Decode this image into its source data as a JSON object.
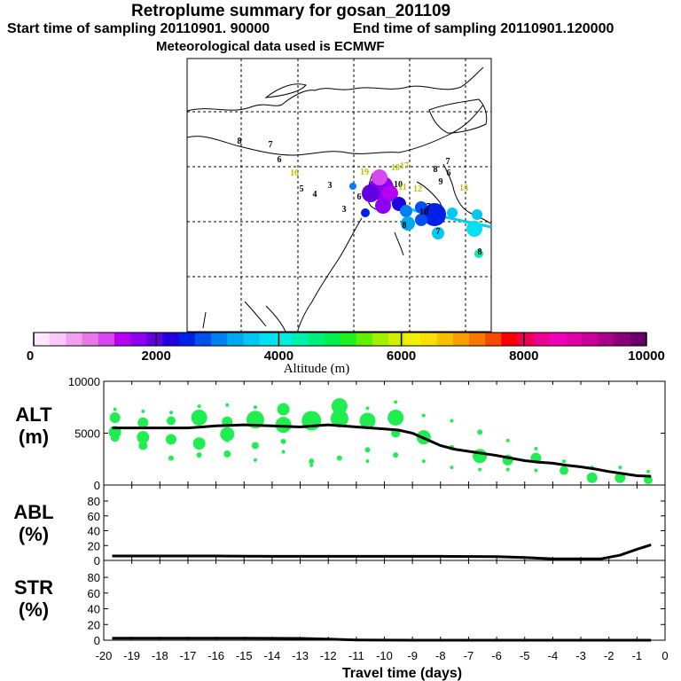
{
  "header": {
    "title": "Retroplume summary for gosan_201109",
    "start_label": "Start time of sampling 20110901. 90000",
    "end_label": "End time of sampling 20110901.120000",
    "met_label": "Meteorological data used is ECMWF"
  },
  "colorbar": {
    "tick_labels": [
      "0",
      "2000",
      "4000",
      "6000",
      "8000",
      "10000"
    ],
    "tick_values": [
      0,
      2000,
      4000,
      6000,
      8000,
      10000
    ],
    "label": "Altitude (m)",
    "colors": [
      "#ffe8ff",
      "#f8c8f8",
      "#f0a0f0",
      "#e878e8",
      "#d848f0",
      "#b800f0",
      "#9000f0",
      "#6000e0",
      "#2000e0",
      "#0020e8",
      "#0050f0",
      "#0080f0",
      "#00a8f0",
      "#00c8f0",
      "#00e0f0",
      "#00f0e0",
      "#00f0b0",
      "#00f080",
      "#00f050",
      "#20f020",
      "#60f000",
      "#a0f000",
      "#d0f000",
      "#f0f000",
      "#f8e000",
      "#f8c000",
      "#f8a000",
      "#f87800",
      "#f84800",
      "#f80000",
      "#f00050",
      "#f00090",
      "#f000b8",
      "#e000a8",
      "#c80098",
      "#a80088",
      "#880078",
      "#680068"
    ]
  },
  "map": {
    "labels": [
      {
        "t": "8",
        "c": "#000000"
      },
      {
        "t": "7",
        "c": "#000000"
      },
      {
        "t": "6",
        "c": "#000000"
      },
      {
        "t": "16",
        "c": "#c0c000"
      },
      {
        "t": "5",
        "c": "#000000"
      },
      {
        "t": "4",
        "c": "#000000"
      },
      {
        "t": "3",
        "c": "#000000"
      },
      {
        "t": "3",
        "c": "#000000"
      },
      {
        "t": "19",
        "c": "#c0c000"
      },
      {
        "t": "18",
        "c": "#c0c000"
      },
      {
        "t": "17",
        "c": "#c0c000"
      },
      {
        "t": "8",
        "c": "#000000"
      },
      {
        "t": "7",
        "c": "#000000"
      },
      {
        "t": "6",
        "c": "#000000"
      },
      {
        "t": "9",
        "c": "#000000"
      },
      {
        "t": "10",
        "c": "#000000"
      },
      {
        "t": "11",
        "c": "#c0c000"
      },
      {
        "t": "12",
        "c": "#c0c000"
      },
      {
        "t": "13",
        "c": "#c0c000"
      },
      {
        "t": "10",
        "c": "#000000"
      },
      {
        "t": "7",
        "c": "#000000"
      },
      {
        "t": "8",
        "c": "#000000"
      },
      {
        "t": "6",
        "c": "#000000"
      },
      {
        "t": "7",
        "c": "#000000"
      },
      {
        "t": "8",
        "c": "#000000"
      }
    ]
  },
  "chart_data": [
    {
      "type": "line",
      "panel": "ALT",
      "ylabel": "ALT",
      "yunit": "(m)",
      "ylim": [
        0,
        10000
      ],
      "yticks": [
        "0",
        "5000",
        "10000"
      ],
      "xlim": [
        -20,
        0
      ],
      "mean": {
        "x": [
          -19.7,
          -19.5,
          -19,
          -18.5,
          -18,
          -17.5,
          -17,
          -16.5,
          -16,
          -15.5,
          -15,
          -14.5,
          -14,
          -13.5,
          -13,
          -12.5,
          -12,
          -11.5,
          -11,
          -10.5,
          -10,
          -9.5,
          -9,
          -8.5,
          -8,
          -7.5,
          -7,
          -6.5,
          -6,
          -5.5,
          -5,
          -4.5,
          -4,
          -3.5,
          -3,
          -2.5,
          -2,
          -1.5,
          -1,
          -0.5
        ],
        "y": [
          5500,
          5500,
          5500,
          5500,
          5500,
          5500,
          5500,
          5600,
          5700,
          5750,
          5800,
          5750,
          5700,
          5650,
          5600,
          5700,
          5800,
          5700,
          5600,
          5500,
          5400,
          5300,
          5000,
          4400,
          3800,
          3450,
          3250,
          3050,
          2850,
          2600,
          2350,
          2200,
          2100,
          1900,
          1750,
          1550,
          1300,
          1100,
          900,
          850
        ]
      },
      "points": {
        "x": [
          -19.6,
          -19.6,
          -19.6,
          -19.6,
          -18.6,
          -18.6,
          -18.6,
          -18.6,
          -17.6,
          -17.6,
          -17.6,
          -17.6,
          -16.6,
          -16.6,
          -16.6,
          -16.6,
          -15.6,
          -15.6,
          -15.6,
          -15.6,
          -15.6,
          -14.6,
          -14.6,
          -14.6,
          -14.6,
          -13.6,
          -13.6,
          -13.6,
          -13.6,
          -12.6,
          -12.6,
          -12.6,
          -11.6,
          -11.6,
          -11.6,
          -10.6,
          -10.6,
          -10.6,
          -10.6,
          -9.6,
          -9.6,
          -9.6,
          -9.6,
          -8.6,
          -8.6,
          -8.6,
          -7.6,
          -7.6,
          -7.6,
          -6.6,
          -6.6,
          -6.6,
          -5.6,
          -5.6,
          -5.6,
          -4.6,
          -4.6,
          -4.6,
          -3.6,
          -3.6,
          -2.6,
          -2.6,
          -1.6,
          -1.6,
          -0.6,
          -0.6
        ],
        "y": [
          7300,
          6500,
          5100,
          4600,
          7100,
          6000,
          4600,
          3800,
          7000,
          6200,
          4400,
          2600,
          7600,
          6500,
          4000,
          2900,
          7700,
          6100,
          4900,
          4300,
          3000,
          7500,
          6300,
          3800,
          2400,
          7300,
          5800,
          4200,
          3200,
          6200,
          2300,
          1900,
          7600,
          6400,
          2600,
          7400,
          6200,
          3400,
          2300,
          8000,
          6500,
          5000,
          2900,
          6700,
          4600,
          2300,
          6200,
          3600,
          1700,
          5100,
          2800,
          1500,
          4300,
          2400,
          1500,
          3500,
          2600,
          1400,
          2300,
          1400,
          1700,
          700,
          1700,
          700,
          1300,
          500
        ],
        "s": [
          2,
          6,
          7,
          5,
          2,
          6,
          7,
          5,
          2,
          5,
          6,
          3,
          2,
          9,
          7,
          3,
          2,
          6,
          8,
          2,
          4,
          2,
          10,
          4,
          2,
          7,
          9,
          3,
          2,
          11,
          3,
          2,
          9,
          10,
          3,
          2,
          9,
          3,
          2,
          2,
          9,
          5,
          3,
          2,
          8,
          2,
          2,
          3,
          2,
          3,
          8,
          2,
          2,
          6,
          2,
          2,
          6,
          2,
          2,
          5,
          2,
          6,
          2,
          6,
          2,
          5
        ]
      }
    },
    {
      "type": "line",
      "panel": "ABL",
      "ylabel": "ABL",
      "yunit": "(%)",
      "ylim": [
        0,
        100
      ],
      "yticks": [
        "0",
        "20",
        "40",
        "60",
        "80"
      ],
      "xlim": [
        -20,
        0
      ],
      "series": [
        {
          "name": "ABL",
          "x": [
            -19.7,
            -18,
            -16,
            -14,
            -12,
            -10,
            -8,
            -6,
            -5,
            -4,
            -3,
            -2.3,
            -1.6,
            -1,
            -0.5
          ],
          "y": [
            6,
            6,
            6,
            5.5,
            5.5,
            5.5,
            5.5,
            5,
            4,
            2,
            2,
            2,
            7,
            15,
            21
          ]
        }
      ]
    },
    {
      "type": "line",
      "panel": "STR",
      "ylabel": "STR",
      "yunit": "(%)",
      "ylim": [
        0,
        100
      ],
      "yticks": [
        "0",
        "20",
        "40",
        "60",
        "80"
      ],
      "xlim": [
        -20,
        0
      ],
      "xlabel": "Travel time (days)",
      "xticks": [
        "-20",
        "-19",
        "-18",
        "-17",
        "-16",
        "-15",
        "-14",
        "-13",
        "-12",
        "-11",
        "-10",
        "-9",
        "-8",
        "-7",
        "-6",
        "-5",
        "-4",
        "-3",
        "-2",
        "-1",
        "0"
      ],
      "series": [
        {
          "name": "STR",
          "x": [
            -19.7,
            -17,
            -15,
            -13,
            -12,
            -11.5,
            -11,
            -9,
            -5,
            -0.5
          ],
          "y": [
            2.5,
            2.5,
            2.5,
            2.2,
            1.5,
            0.8,
            0.3,
            0,
            0,
            0
          ]
        }
      ]
    }
  ]
}
